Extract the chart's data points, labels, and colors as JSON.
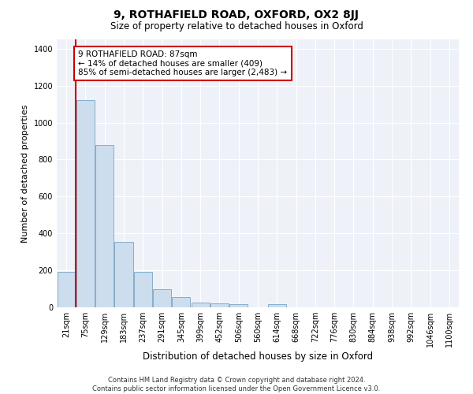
{
  "title": "9, ROTHAFIELD ROAD, OXFORD, OX2 8JJ",
  "subtitle": "Size of property relative to detached houses in Oxford",
  "xlabel": "Distribution of detached houses by size in Oxford",
  "ylabel": "Number of detached properties",
  "categories": [
    "21sqm",
    "75sqm",
    "129sqm",
    "183sqm",
    "237sqm",
    "291sqm",
    "345sqm",
    "399sqm",
    "452sqm",
    "506sqm",
    "560sqm",
    "614sqm",
    "668sqm",
    "722sqm",
    "776sqm",
    "830sqm",
    "884sqm",
    "938sqm",
    "992sqm",
    "1046sqm",
    "1100sqm"
  ],
  "bar_heights": [
    190,
    1120,
    880,
    355,
    190,
    100,
    55,
    25,
    20,
    17,
    0,
    17,
    0,
    0,
    0,
    0,
    0,
    0,
    0,
    0,
    0
  ],
  "bar_color": "#ccdded",
  "bar_edge_color": "#85aecb",
  "highlight_line_color": "#cc0000",
  "annotation_text": "9 ROTHAFIELD ROAD: 87sqm\n← 14% of detached houses are smaller (409)\n85% of semi-detached houses are larger (2,483) →",
  "annotation_box_color": "#ffffff",
  "annotation_box_edge": "#cc0000",
  "ylim": [
    0,
    1450
  ],
  "yticks": [
    0,
    200,
    400,
    600,
    800,
    1000,
    1200,
    1400
  ],
  "footer_line1": "Contains HM Land Registry data © Crown copyright and database right 2024.",
  "footer_line2": "Contains public sector information licensed under the Open Government Licence v3.0.",
  "bg_color": "#eef2f8",
  "plot_bg_color": "#eef2f8"
}
